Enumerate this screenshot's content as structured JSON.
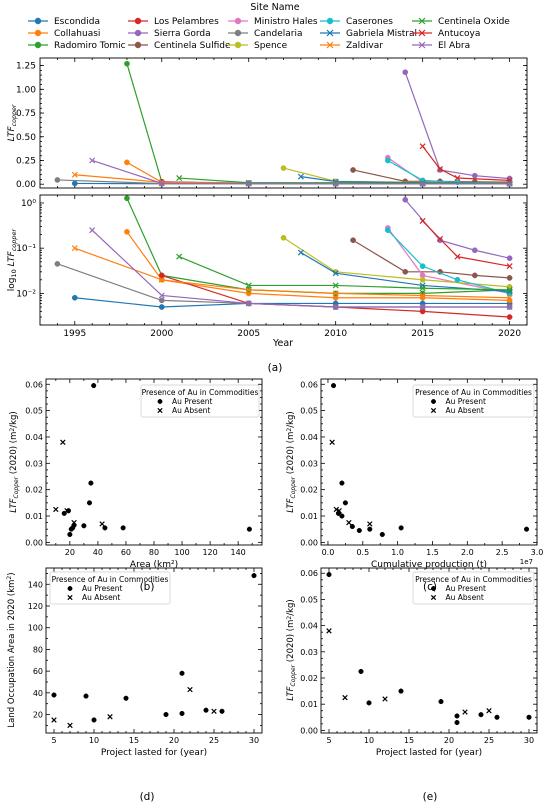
{
  "legend": {
    "title": "Site Name"
  },
  "panel_labels": [
    "(a)",
    "(b)",
    "(c)",
    "(d)",
    "(e)"
  ],
  "colors": {
    "Escondida": "#1f77b4",
    "Collahuasi": "#ff7f0e",
    "Radomiro Tomic": "#2ca02c",
    "Los Pelambres": "#d62728",
    "Sierra Gorda": "#9467bd",
    "Centinela Sulfide": "#8c564b",
    "Ministro Hales": "#e377c2",
    "Candelaria": "#7f7f7f",
    "Spence": "#bcbd22",
    "Caserones": "#17becf",
    "Gabriela Mistral": "#1f77b4",
    "Zaldivar": "#ff7f0e",
    "Centinela Oxide": "#2ca02c",
    "Antucoya": "#d62728",
    "El Abra": "#9467bd"
  },
  "chart_data": [
    {
      "type": "line",
      "panel": "(a) top",
      "ylabel": "LTF_copper",
      "xlim": [
        1993,
        2021
      ],
      "ylim": [
        -0.04,
        1.33
      ],
      "yticks": [
        0.0,
        0.25,
        0.5,
        0.75,
        1.0,
        1.25
      ],
      "ytick_labels": [
        "0.00",
        "0.25",
        "0.50",
        "0.75",
        "1.00",
        "1.25"
      ],
      "series": [
        {
          "name": "Escondida",
          "marker": "o",
          "x": [
            1995,
            2000,
            2005,
            2010,
            2015,
            2020
          ],
          "y": [
            0.008,
            0.005,
            0.006,
            0.006,
            0.006,
            0.006
          ]
        },
        {
          "name": "Collahuasi",
          "marker": "o",
          "x": [
            1998,
            2000,
            2005,
            2010,
            2015,
            2020
          ],
          "y": [
            0.23,
            0.02,
            0.01,
            0.008,
            0.008,
            0.007
          ]
        },
        {
          "name": "Radomiro Tomic",
          "marker": "o",
          "x": [
            1998,
            2000,
            2005,
            2010,
            2015,
            2020
          ],
          "y": [
            1.27,
            0.025,
            0.012,
            0.01,
            0.01,
            0.012
          ]
        },
        {
          "name": "Los Pelambres",
          "marker": "o",
          "x": [
            2000,
            2005,
            2010,
            2015,
            2020
          ],
          "y": [
            0.025,
            0.006,
            0.005,
            0.004,
            0.003
          ]
        },
        {
          "name": "Sierra Gorda",
          "marker": "o",
          "x": [
            2014,
            2016,
            2018,
            2020
          ],
          "y": [
            1.18,
            0.15,
            0.09,
            0.06
          ]
        },
        {
          "name": "Centinela Sulfide",
          "marker": "o",
          "x": [
            2011,
            2014,
            2016,
            2018,
            2020
          ],
          "y": [
            0.15,
            0.03,
            0.03,
            0.025,
            0.022
          ]
        },
        {
          "name": "Ministro Hales",
          "marker": "o",
          "x": [
            2013,
            2015,
            2020
          ],
          "y": [
            0.28,
            0.025,
            0.01
          ]
        },
        {
          "name": "Candelaria",
          "marker": "o",
          "x": [
            1994,
            2000,
            2005,
            2010,
            2015,
            2020
          ],
          "y": [
            0.045,
            0.007,
            0.006,
            0.005,
            0.005,
            0.005
          ]
        },
        {
          "name": "Spence",
          "marker": "o",
          "x": [
            2007,
            2010,
            2015,
            2020
          ],
          "y": [
            0.17,
            0.03,
            0.02,
            0.014
          ]
        },
        {
          "name": "Caserones",
          "marker": "o",
          "x": [
            2013,
            2015,
            2017,
            2020
          ],
          "y": [
            0.25,
            0.04,
            0.02,
            0.01
          ]
        },
        {
          "name": "Gabriela Mistral",
          "marker": "x",
          "x": [
            2008,
            2010,
            2015,
            2020
          ],
          "y": [
            0.08,
            0.028,
            0.015,
            0.011
          ]
        },
        {
          "name": "Zaldivar",
          "marker": "x",
          "x": [
            1995,
            2000,
            2005,
            2010,
            2015,
            2020
          ],
          "y": [
            0.1,
            0.02,
            0.012,
            0.01,
            0.009,
            0.008
          ]
        },
        {
          "name": "Centinela Oxide",
          "marker": "x",
          "x": [
            2001,
            2005,
            2010,
            2015,
            2020
          ],
          "y": [
            0.065,
            0.015,
            0.015,
            0.013,
            0.012
          ]
        },
        {
          "name": "Antucoya",
          "marker": "x",
          "x": [
            2015,
            2016,
            2017,
            2020
          ],
          "y": [
            0.4,
            0.16,
            0.065,
            0.04
          ]
        },
        {
          "name": "El Abra",
          "marker": "x",
          "x": [
            1996,
            2000,
            2005,
            2010,
            2015,
            2020
          ],
          "y": [
            0.25,
            0.009,
            0.006,
            0.005,
            0.005,
            0.005
          ]
        }
      ]
    },
    {
      "type": "line",
      "panel": "(a) bottom",
      "ylabel": "log10 LTF_copper",
      "xlabel": "Year",
      "xlim": [
        1993,
        2021
      ],
      "ylim": [
        0.002,
        1.5
      ],
      "log_y": true,
      "ytick_labels": [
        "10⁻²",
        "10⁻¹",
        "10⁰"
      ],
      "xticks": [
        1995,
        2000,
        2005,
        2010,
        2015,
        2020
      ],
      "same_series_as": "(a) top"
    },
    {
      "type": "scatter",
      "panel": "(b)",
      "xlabel": "Area (km²)",
      "ylabel": "LTF_Copper (2020) (m²/kg)",
      "xlim": [
        3,
        157
      ],
      "ylim": [
        -0.001,
        0.062
      ],
      "xticks": [
        20,
        40,
        60,
        80,
        100,
        120,
        140
      ],
      "yticks": [
        0.0,
        0.01,
        0.02,
        0.03,
        0.04,
        0.05,
        0.06
      ],
      "legend_title": "Presence of Au in Commodities",
      "series": [
        {
          "name": "Au Present",
          "marker": "o",
          "x": [
            37,
            35,
            34,
            16,
            19,
            20,
            21,
            22,
            23,
            30,
            45,
            58,
            148
          ],
          "y": [
            0.0595,
            0.0225,
            0.015,
            0.011,
            0.012,
            0.003,
            0.005,
            0.0055,
            0.0065,
            0.0063,
            0.0055,
            0.0055,
            0.005
          ]
        },
        {
          "name": "Au Absent",
          "marker": "x",
          "x": [
            15,
            10,
            18,
            23,
            43
          ],
          "y": [
            0.038,
            0.0125,
            0.012,
            0.0075,
            0.007
          ]
        }
      ]
    },
    {
      "type": "scatter",
      "panel": "(c)",
      "xlabel": "Cumulative production (t)",
      "ylabel": "LTF_Copper (2020) (m²/kg)",
      "xlim": [
        -1000000,
        30000000
      ],
      "ylim": [
        -0.001,
        0.062
      ],
      "xticks": [
        0,
        5000000,
        10000000,
        15000000,
        20000000,
        25000000,
        30000000
      ],
      "xtick_labels": [
        "0.0",
        "0.5",
        "1.0",
        "1.5",
        "2.0",
        "2.5",
        "3.0"
      ],
      "x_multiplier": "1e7",
      "yticks": [
        0.0,
        0.01,
        0.02,
        0.03,
        0.04,
        0.05,
        0.06
      ],
      "legend_title": "Presence of Au in Commodities",
      "series": [
        {
          "name": "Au Present",
          "marker": "o",
          "x": [
            800000,
            2000000,
            2500000,
            1500000,
            2000000,
            3500000,
            4500000,
            6000000,
            10500000,
            28500000,
            7800000
          ],
          "y": [
            0.0595,
            0.0225,
            0.015,
            0.011,
            0.01,
            0.006,
            0.0045,
            0.005,
            0.0055,
            0.005,
            0.003
          ]
        },
        {
          "name": "Au Absent",
          "marker": "x",
          "x": [
            600000,
            1200000,
            3000000,
            6000000,
            1600000
          ],
          "y": [
            0.038,
            0.0125,
            0.0075,
            0.007,
            0.012
          ]
        }
      ]
    },
    {
      "type": "scatter",
      "panel": "(d)",
      "xlabel": "Project lasted for (year)",
      "ylabel": "Land Occupation Area in 2020 (km²)",
      "xlim": [
        4,
        31
      ],
      "ylim": [
        3,
        155
      ],
      "xticks": [
        5,
        10,
        15,
        20,
        25,
        30
      ],
      "yticks": [
        20,
        40,
        60,
        80,
        100,
        120,
        140
      ],
      "legend_title": "Presence of Au in Commodities",
      "series": [
        {
          "name": "Au Present",
          "marker": "o",
          "x": [
            5,
            9,
            10,
            14,
            19,
            21,
            21,
            24,
            26,
            30
          ],
          "y": [
            38,
            37,
            15,
            35,
            20,
            58,
            21,
            24,
            23,
            148
          ]
        },
        {
          "name": "Au Absent",
          "marker": "x",
          "x": [
            5,
            7,
            12,
            22,
            25
          ],
          "y": [
            15,
            10,
            18,
            43,
            23
          ]
        }
      ]
    },
    {
      "type": "scatter",
      "panel": "(e)",
      "xlabel": "Project lasted for (year)",
      "ylabel": "LTF_Copper (2020) (m²/kg)",
      "xlim": [
        4,
        31
      ],
      "ylim": [
        -0.001,
        0.062
      ],
      "xticks": [
        5,
        10,
        15,
        20,
        25,
        30
      ],
      "yticks": [
        0.0,
        0.01,
        0.02,
        0.03,
        0.04,
        0.05,
        0.06
      ],
      "legend_title": "Presence of Au in Commodities",
      "series": [
        {
          "name": "Au Present",
          "marker": "o",
          "x": [
            5,
            9,
            10,
            14,
            19,
            21,
            21,
            24,
            26,
            30
          ],
          "y": [
            0.0595,
            0.0225,
            0.0105,
            0.015,
            0.011,
            0.0055,
            0.003,
            0.006,
            0.005,
            0.005
          ]
        },
        {
          "name": "Au Absent",
          "marker": "x",
          "x": [
            5,
            7,
            12,
            22,
            25
          ],
          "y": [
            0.038,
            0.0125,
            0.012,
            0.007,
            0.0075
          ]
        }
      ]
    }
  ]
}
